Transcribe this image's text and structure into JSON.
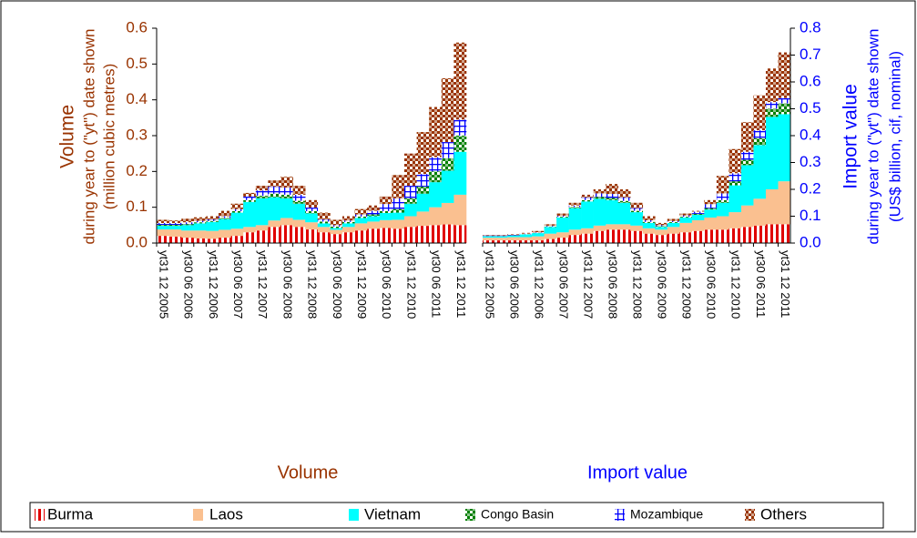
{
  "chart_data": [
    {
      "type": "bar",
      "stacked": true,
      "y_axis_side": "left",
      "axis_color": "#993300",
      "y_title": "Volume",
      "y_subtitle": "during year to (\"yt\") date shown",
      "y_unit": "(million cubic metres)",
      "x_title": "Volume",
      "ylim": [
        0,
        0.6
      ],
      "yticks": [
        {
          "value": 0,
          "label": "0.0"
        },
        0.1,
        0.2,
        0.3,
        0.4,
        0.5,
        0.6
      ],
      "categories": [
        "yt31 12 2005",
        null,
        "yt30 06 2006",
        null,
        "yt31 12 2006",
        null,
        "yt30 06 2007",
        null,
        "yt31 12 2007",
        null,
        "yt30 06 2008",
        null,
        "yt31 12 2008",
        null,
        "yt30 06 2009",
        null,
        "yt31 12 2009",
        null,
        "yt30 06 2010",
        null,
        "yt31 12 2010",
        null,
        "yt30 06 2011",
        null,
        "yt31 12 2011"
      ],
      "series": [
        {
          "name": "Burma",
          "color": "#e00000",
          "hatch": "vertical",
          "values": [
            0.02,
            0.018,
            0.015,
            0.013,
            0.012,
            0.015,
            0.02,
            0.03,
            0.035,
            0.045,
            0.05,
            0.045,
            0.038,
            0.03,
            0.025,
            0.03,
            0.035,
            0.04,
            0.042,
            0.04,
            0.045,
            0.048,
            0.05,
            0.052,
            0.05
          ]
        },
        {
          "name": "Laos",
          "color": "#fac090",
          "hatch": "solid",
          "values": [
            0.018,
            0.02,
            0.02,
            0.022,
            0.022,
            0.022,
            0.02,
            0.015,
            0.015,
            0.018,
            0.02,
            0.02,
            0.02,
            0.015,
            0.012,
            0.015,
            0.02,
            0.02,
            0.022,
            0.025,
            0.03,
            0.04,
            0.05,
            0.06,
            0.085
          ]
        },
        {
          "name": "Vietnam",
          "color": "#00ffff",
          "hatch": "solid",
          "values": [
            0.01,
            0.01,
            0.015,
            0.02,
            0.025,
            0.03,
            0.045,
            0.07,
            0.075,
            0.065,
            0.055,
            0.045,
            0.025,
            0.01,
            0.005,
            0.01,
            0.015,
            0.015,
            0.02,
            0.02,
            0.035,
            0.05,
            0.07,
            0.09,
            0.12
          ]
        },
        {
          "name": "Congo Basin",
          "color": "#008000",
          "hatch": "check",
          "values": [
            0.003,
            0.003,
            0.003,
            0.003,
            0.003,
            0.003,
            0.004,
            0.005,
            0.007,
            0.01,
            0.01,
            0.008,
            0.006,
            0.005,
            0.004,
            0.004,
            0.004,
            0.005,
            0.005,
            0.01,
            0.015,
            0.02,
            0.03,
            0.035,
            0.045
          ]
        },
        {
          "name": "Mozambique",
          "color": "#0000ff",
          "hatch": "grid",
          "values": [
            0.005,
            0.005,
            0.005,
            0.004,
            0.004,
            0.005,
            0.006,
            0.01,
            0.015,
            0.02,
            0.02,
            0.017,
            0.01,
            0.006,
            0.004,
            0.004,
            0.006,
            0.01,
            0.02,
            0.03,
            0.035,
            0.035,
            0.04,
            0.045,
            0.045
          ]
        },
        {
          "name": "Others",
          "color": "#993300",
          "hatch": "check",
          "values": [
            0.009,
            0.007,
            0.01,
            0.01,
            0.009,
            0.015,
            0.015,
            0.01,
            0.013,
            0.017,
            0.03,
            0.025,
            0.021,
            0.019,
            0.015,
            0.012,
            0.015,
            0.015,
            0.021,
            0.065,
            0.09,
            0.117,
            0.14,
            0.178,
            0.215
          ]
        }
      ]
    },
    {
      "type": "bar",
      "stacked": true,
      "y_axis_side": "right",
      "axis_color": "#0000ff",
      "y_title": "Import value",
      "y_subtitle": "during year to (\"yt\") date shown",
      "y_unit": "(US$ billion, cif, nominal)",
      "x_title": "Import value",
      "ylim": [
        0,
        0.8
      ],
      "yticks": [
        {
          "value": 0,
          "label": "0.0"
        },
        0.1,
        0.2,
        0.3,
        0.4,
        0.5,
        0.6,
        0.7,
        0.8
      ],
      "categories": [
        "yt31 12 2005",
        null,
        "yt30 06 2006",
        null,
        "yt31 12 2006",
        null,
        "yt30 06 2007",
        null,
        "yt31 12 2007",
        null,
        "yt30 06 2008",
        null,
        "yt31 12 2008",
        null,
        "yt30 06 2009",
        null,
        "yt31 12 2009",
        null,
        "yt30 06 2010",
        null,
        "yt31 12 2010",
        null,
        "yt30 06 2011",
        null,
        "yt31 12 2011"
      ],
      "series": [
        {
          "color": "#e00000",
          "hatch": "vertical",
          "values": [
            0.01,
            0.01,
            0.01,
            0.01,
            0.01,
            0.015,
            0.02,
            0.03,
            0.035,
            0.045,
            0.05,
            0.05,
            0.045,
            0.035,
            0.03,
            0.035,
            0.04,
            0.045,
            0.05,
            0.05,
            0.055,
            0.06,
            0.065,
            0.07,
            0.07
          ]
        },
        {
          "color": "#fac090",
          "hatch": "solid",
          "values": [
            0.01,
            0.01,
            0.012,
            0.012,
            0.015,
            0.02,
            0.02,
            0.02,
            0.02,
            0.02,
            0.02,
            0.02,
            0.02,
            0.02,
            0.02,
            0.025,
            0.035,
            0.04,
            0.045,
            0.05,
            0.06,
            0.08,
            0.1,
            0.13,
            0.16
          ]
        },
        {
          "color": "#00ffff",
          "hatch": "solid",
          "values": [
            0.005,
            0.005,
            0.006,
            0.01,
            0.012,
            0.025,
            0.055,
            0.08,
            0.1,
            0.1,
            0.09,
            0.08,
            0.05,
            0.02,
            0.01,
            0.015,
            0.02,
            0.02,
            0.03,
            0.05,
            0.1,
            0.15,
            0.2,
            0.27,
            0.25
          ]
        },
        {
          "color": "#008000",
          "hatch": "check",
          "values": [
            0.001,
            0.001,
            0.001,
            0.001,
            0.001,
            0.002,
            0.003,
            0.004,
            0.005,
            0.007,
            0.008,
            0.007,
            0.005,
            0.004,
            0.003,
            0.003,
            0.003,
            0.004,
            0.005,
            0.01,
            0.015,
            0.02,
            0.025,
            0.03,
            0.04
          ]
        },
        {
          "color": "#0000ff",
          "hatch": "grid",
          "values": [
            0.002,
            0.002,
            0.002,
            0.002,
            0.002,
            0.003,
            0.004,
            0.006,
            0.01,
            0.013,
            0.015,
            0.013,
            0.01,
            0.006,
            0.004,
            0.004,
            0.005,
            0.008,
            0.015,
            0.025,
            0.03,
            0.03,
            0.03,
            0.025,
            0.02
          ]
        },
        {
          "color": "#993300",
          "hatch": "check",
          "values": [
            0.002,
            0.002,
            0.002,
            0.003,
            0.005,
            0.005,
            0.008,
            0.01,
            0.01,
            0.015,
            0.037,
            0.03,
            0.02,
            0.015,
            0.008,
            0.008,
            0.007,
            0.003,
            0.015,
            0.065,
            0.09,
            0.11,
            0.13,
            0.125,
            0.17
          ]
        }
      ]
    }
  ]
}
